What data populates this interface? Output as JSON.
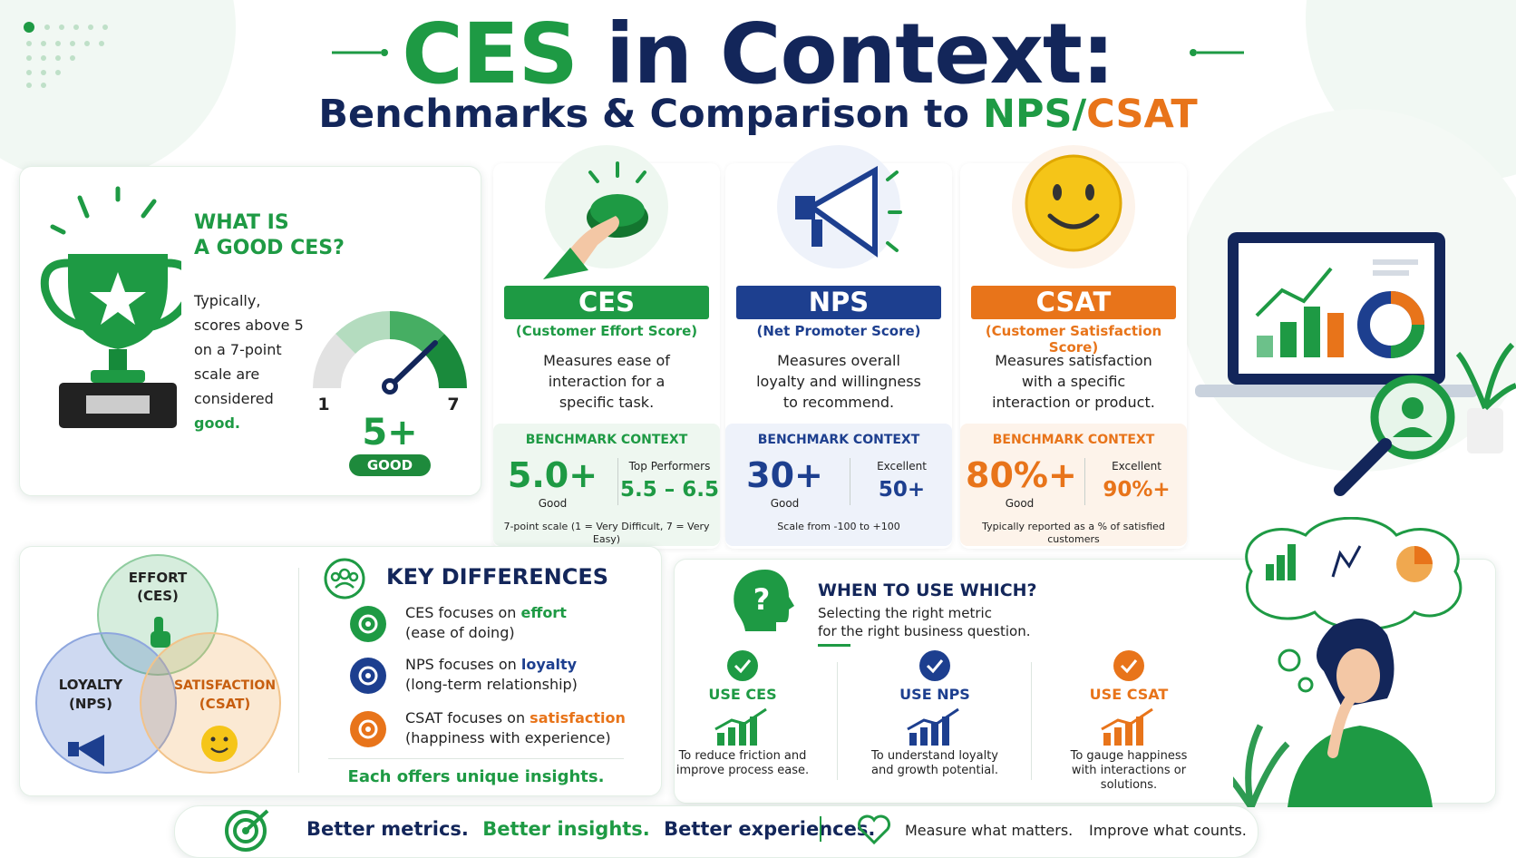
{
  "header": {
    "title_highlight": "CES",
    "title_rest": "in Context:",
    "subtitle_lead": "Benchmarks & Comparison to ",
    "subtitle_nps": "NPS",
    "subtitle_slash": "/",
    "subtitle_csat": "CSAT"
  },
  "good_ces": {
    "heading_line1": "WHAT IS",
    "heading_line2": "A GOOD CES?",
    "text": "Typically, scores above 5 on a 7-point scale are considered",
    "highlight": "good.",
    "gauge_min": "1",
    "gauge_max": "7",
    "score": "5+",
    "badge": "GOOD"
  },
  "metrics": [
    {
      "name": "CES",
      "full_name": "(Customer Effort Score)",
      "color": "#1e9a44",
      "tint": "#eef7f0",
      "description": "Measures ease of interaction for a specific task.",
      "benchmark_heading": "BENCHMARK CONTEXT",
      "good_value": "5.0+",
      "good_label": "Good",
      "top_label": "Top Performers",
      "top_value": "5.5 – 6.5",
      "note": "7-point scale (1 = Very Difficult, 7 = Very Easy)"
    },
    {
      "name": "NPS",
      "full_name": "(Net Promoter Score)",
      "color": "#1d3f8f",
      "tint": "#eef2fa",
      "description": "Measures overall loyalty and willingness to recommend.",
      "benchmark_heading": "BENCHMARK CONTEXT",
      "good_value": "30+",
      "good_label": "Good",
      "top_label": "Excellent",
      "top_value": "50+",
      "note": "Scale from -100 to +100"
    },
    {
      "name": "CSAT",
      "full_name": "(Customer Satisfaction Score)",
      "color": "#e8741a",
      "tint": "#fdf3ea",
      "description": "Measures satisfaction with a specific interaction or product.",
      "benchmark_heading": "BENCHMARK CONTEXT",
      "good_value": "80%+",
      "good_label": "Good",
      "top_label": "Excellent",
      "top_value": "90%+",
      "note": "Typically reported as a % of satisfied customers"
    }
  ],
  "venn": {
    "effort": "EFFORT",
    "effort_metric": "(CES)",
    "loyalty": "LOYALTY",
    "loyalty_metric": "(NPS)",
    "satisfaction": "SATISFACTION",
    "satisfaction_metric": "(CSAT)"
  },
  "key_differences": {
    "title": "KEY DIFFERENCES",
    "items": [
      {
        "prefix": "CES focuses on ",
        "keyword": "effort",
        "detail": "(ease of doing)"
      },
      {
        "prefix": "NPS focuses on ",
        "keyword": "loyalty",
        "detail": "(long-term relationship)"
      },
      {
        "prefix": "CSAT focuses on ",
        "keyword": "satisfaction",
        "detail": "(happiness with experience)"
      }
    ],
    "footer": "Each offers unique insights."
  },
  "when_to_use": {
    "title": "WHEN TO USE WHICH?",
    "subtitle_line1": "Selecting the right metric",
    "subtitle_line2": "for the right business question.",
    "items": [
      {
        "label": "USE CES",
        "text": "To reduce friction and improve process ease."
      },
      {
        "label": "USE NPS",
        "text": "To understand loyalty and growth potential."
      },
      {
        "label": "USE CSAT",
        "text": "To gauge happiness with interactions or solutions."
      }
    ]
  },
  "footer": {
    "metrics": "Better metrics.",
    "insights": "Better insights.",
    "experiences": "Better experiences.",
    "measure": "Measure what matters.",
    "improve": "Improve what counts."
  }
}
